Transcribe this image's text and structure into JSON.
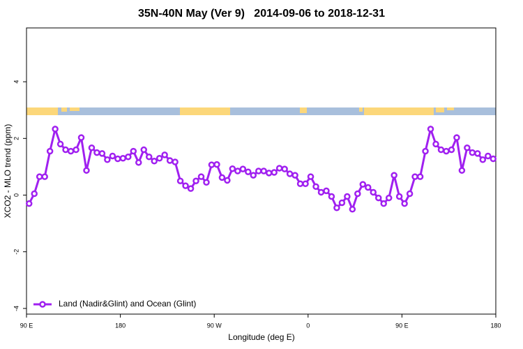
{
  "chart_data": {
    "type": "line",
    "title": "35N-40N May (Ver 9)   2014-09-06 to 2018-12-31",
    "xlabel": "Longitude (deg E)",
    "ylabel": "XCO2 - MLO trend (ppm)",
    "x": [
      92.5,
      97.5,
      102.5,
      107.5,
      112.5,
      117.5,
      122.5,
      127.5,
      132.5,
      137.5,
      142.5,
      147.5,
      152.5,
      157.5,
      162.5,
      167.5,
      172.5,
      177.5,
      182.5,
      187.5,
      192.5,
      197.5,
      202.5,
      207.5,
      212.5,
      217.5,
      222.5,
      227.5,
      232.5,
      237.5,
      242.5,
      247.5,
      252.5,
      257.5,
      262.5,
      267.5,
      272.5,
      277.5,
      282.5,
      287.5,
      292.5,
      297.5,
      302.5,
      307.5,
      312.5,
      317.5,
      322.5,
      327.5,
      332.5,
      337.5,
      342.5,
      347.5,
      352.5,
      357.5,
      362.5,
      367.5,
      372.5,
      377.5,
      382.5,
      387.5,
      392.5,
      397.5,
      402.5,
      407.5,
      412.5,
      417.5,
      422.5,
      427.5,
      432.5,
      437.5,
      442.5,
      447.5,
      452.5,
      457.5,
      462.5,
      467.5,
      472.5,
      477.5,
      482.5,
      487.5,
      492.5,
      497.5,
      502.5,
      507.5,
      512.5,
      517.5,
      522.5,
      527.5,
      532.5,
      537.5
    ],
    "series": [
      {
        "name": "Land (Nadir&Glint) and Ocean (Glint)",
        "color": "#a020f0",
        "values": [
          -0.3,
          0.05,
          0.65,
          0.65,
          1.55,
          2.33,
          1.8,
          1.6,
          1.55,
          1.6,
          2.03,
          0.87,
          1.67,
          1.5,
          1.47,
          1.25,
          1.38,
          1.28,
          1.3,
          1.35,
          1.55,
          1.15,
          1.6,
          1.35,
          1.2,
          1.3,
          1.42,
          1.22,
          1.17,
          0.5,
          0.33,
          0.23,
          0.5,
          0.65,
          0.45,
          1.07,
          1.08,
          0.62,
          0.52,
          0.93,
          0.85,
          0.92,
          0.82,
          0.7,
          0.85,
          0.85,
          0.78,
          0.8,
          0.95,
          0.92,
          0.75,
          0.7,
          0.4,
          0.4,
          0.65,
          0.3,
          0.1,
          0.15,
          -0.05,
          -0.45,
          -0.27,
          -0.05,
          -0.5,
          0.05,
          0.38,
          0.27,
          0.1,
          -0.1,
          -0.3,
          -0.1,
          0.7,
          -0.05,
          -0.3,
          0.05,
          0.65,
          0.65,
          1.55,
          2.33,
          1.8,
          1.6,
          1.55,
          1.6,
          2.03,
          0.87,
          1.67,
          1.5,
          1.47,
          1.25,
          1.38,
          1.28
        ]
      }
    ],
    "xlim": [
      90,
      540
    ],
    "xticks": [
      {
        "value": 90,
        "label": "90 E"
      },
      180,
      {
        "value": 270,
        "label": "90 W"
      },
      {
        "value": 360,
        "label": "0"
      },
      {
        "value": 450,
        "label": "90 E"
      },
      {
        "value": 540,
        "label": "180"
      }
    ],
    "ylim": [
      -4.2,
      5.9
    ],
    "yticks": [
      -4,
      -2,
      0,
      2,
      4
    ],
    "grid": false,
    "legend": "lower left"
  }
}
